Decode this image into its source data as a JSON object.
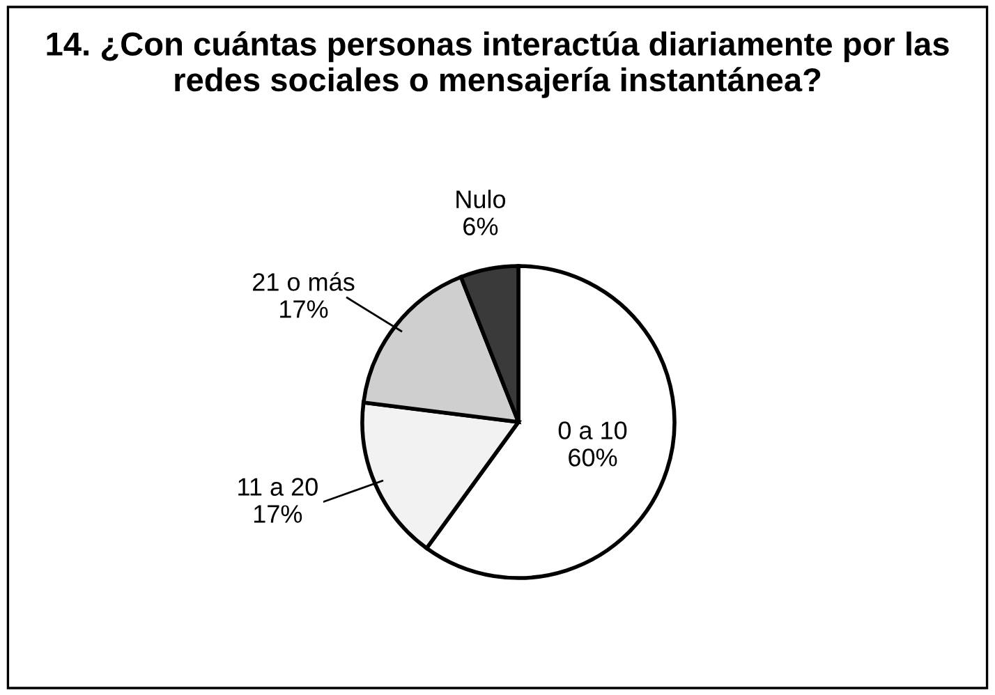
{
  "chart_data": {
    "type": "pie",
    "title": "14. ¿Con cuántas personas interactúa diariamente por las redes sociales o mensajería instantánea?",
    "categories": [
      "0 a 10",
      "11 a 20",
      "21 o más",
      "Nulo"
    ],
    "values": [
      60,
      17,
      17,
      6
    ],
    "value_labels": [
      "60%",
      "17%",
      "17%",
      "6%"
    ],
    "colors": [
      "#ffffff",
      "#f2f2f2",
      "#cfcfcf",
      "#3a3a3a"
    ],
    "legend": false
  }
}
